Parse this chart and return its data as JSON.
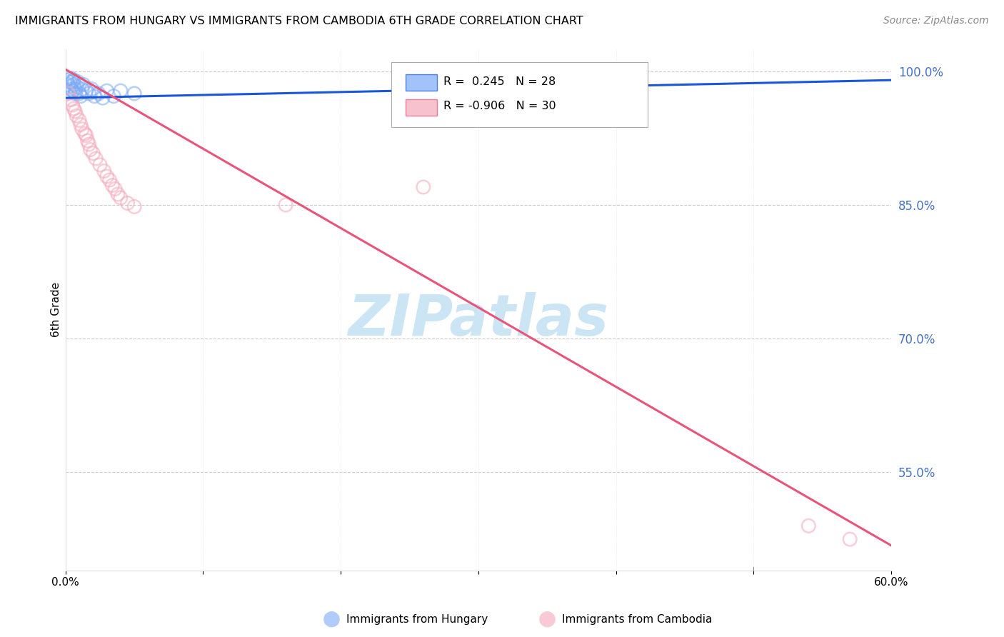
{
  "title": "IMMIGRANTS FROM HUNGARY VS IMMIGRANTS FROM CAMBODIA 6TH GRADE CORRELATION CHART",
  "source": "Source: ZipAtlas.com",
  "ylabel": "6th Grade",
  "xlim": [
    0.0,
    0.6
  ],
  "ylim": [
    0.44,
    1.025
  ],
  "yticks_right": [
    1.0,
    0.85,
    0.7,
    0.55
  ],
  "ytick_right_labels": [
    "100.0%",
    "85.0%",
    "70.0%",
    "55.0%"
  ],
  "grid_color": "#cccccc",
  "background_color": "#ffffff",
  "watermark": "ZIPatlas",
  "watermark_color": "#cce5f5",
  "hungary_color": "#7baaf7",
  "cambodia_color": "#f4a7b9",
  "hungary_line_color": "#1a56db",
  "cambodia_line_color": "#e8547a",
  "hungary_R": 0.245,
  "hungary_N": 28,
  "cambodia_R": -0.906,
  "cambodia_N": 30,
  "hungary_line_x0": 0.0,
  "hungary_line_y0": 0.97,
  "hungary_line_x1": 0.6,
  "hungary_line_y1": 0.99,
  "cambodia_line_x0": 0.0,
  "cambodia_line_y0": 1.002,
  "cambodia_line_x1": 0.6,
  "cambodia_line_y1": 0.468,
  "hungary_x": [
    0.001,
    0.002,
    0.003,
    0.003,
    0.004,
    0.004,
    0.005,
    0.005,
    0.006,
    0.006,
    0.007,
    0.007,
    0.008,
    0.009,
    0.01,
    0.011,
    0.012,
    0.013,
    0.015,
    0.017,
    0.019,
    0.021,
    0.024,
    0.027,
    0.03,
    0.035,
    0.04,
    0.05
  ],
  "hungary_y": [
    0.99,
    0.985,
    0.983,
    0.988,
    0.98,
    0.992,
    0.978,
    0.988,
    0.985,
    0.99,
    0.98,
    0.975,
    0.983,
    0.988,
    0.975,
    0.972,
    0.98,
    0.985,
    0.978,
    0.975,
    0.98,
    0.972,
    0.975,
    0.97,
    0.978,
    0.972,
    0.978,
    0.975
  ],
  "cambodia_x": [
    0.002,
    0.004,
    0.005,
    0.006,
    0.007,
    0.008,
    0.01,
    0.011,
    0.012,
    0.014,
    0.015,
    0.016,
    0.017,
    0.018,
    0.02,
    0.022,
    0.025,
    0.028,
    0.03,
    0.032,
    0.034,
    0.036,
    0.038,
    0.04,
    0.045,
    0.05,
    0.16,
    0.26,
    0.54,
    0.57
  ],
  "cambodia_y": [
    0.975,
    0.968,
    0.962,
    0.958,
    0.955,
    0.95,
    0.945,
    0.94,
    0.935,
    0.93,
    0.928,
    0.922,
    0.918,
    0.912,
    0.908,
    0.902,
    0.895,
    0.888,
    0.882,
    0.878,
    0.872,
    0.868,
    0.862,
    0.858,
    0.852,
    0.848,
    0.85,
    0.87,
    0.49,
    0.475
  ]
}
